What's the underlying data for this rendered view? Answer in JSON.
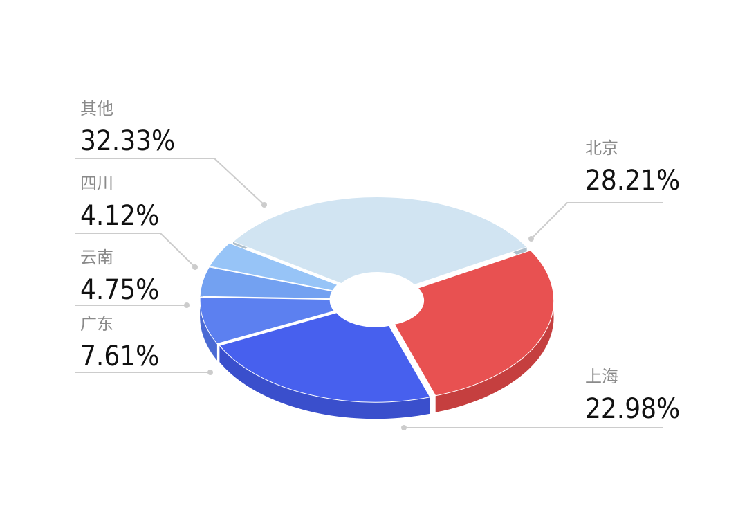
{
  "chart_data": {
    "type": "pie",
    "style": "3d-donut",
    "series": [
      {
        "label": "北京",
        "value": 28.21,
        "display": "28.21%",
        "color": "#e85151",
        "side": "#c53f3f"
      },
      {
        "label": "上海",
        "value": 22.98,
        "display": "22.98%",
        "color": "#4760ee",
        "side": "#3a4fcc"
      },
      {
        "label": "广东",
        "value": 7.61,
        "display": "7.61%",
        "color": "#5c80f0",
        "side": "#4a6ad3"
      },
      {
        "label": "云南",
        "value": 4.75,
        "display": "4.75%",
        "color": "#73a1f1",
        "side": "#5e89d6"
      },
      {
        "label": "四川",
        "value": 4.12,
        "display": "4.12%",
        "color": "#97c4f7",
        "side": "#7ba9dd"
      },
      {
        "label": "其他",
        "value": 32.33,
        "display": "32.33%",
        "color": "#d1e4f2",
        "side": "#aebfcc"
      }
    ]
  }
}
